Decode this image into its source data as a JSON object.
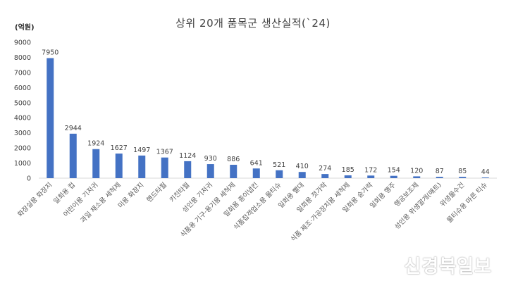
{
  "chart_data": {
    "type": "bar",
    "title": "상위 20개 품목군 생산실적(`24)",
    "ylabel": "(억원)",
    "xlabel": "",
    "ylim": [
      0,
      9000
    ],
    "yticks": [
      0,
      1000,
      2000,
      3000,
      4000,
      5000,
      6000,
      7000,
      8000,
      9000
    ],
    "grid": false,
    "legend": "none",
    "bar_color": "#4472C4",
    "categories": [
      "화장실용 화장지",
      "일회용 컵",
      "어린이용 기저귀",
      "과일 채소용 세척제",
      "미용 화장지",
      "핸드타월",
      "키친타월",
      "성인용 기저귀",
      "식품용 기구·용기용 세척제",
      "일회용 종이냅킨",
      "식품접객업소용 물티슈",
      "일회용 빨대",
      "일회용 젓가락",
      "식품 제조·가공장치용 세척제",
      "일회용 숟가락",
      "일회용 행주",
      "헹굼보조제",
      "성인용 위생깔개(매트)",
      "위생물수건",
      "물티슈용 마른 티슈"
    ],
    "values": [
      7950,
      2944,
      1924,
      1627,
      1497,
      1367,
      1124,
      930,
      886,
      641,
      521,
      410,
      274,
      185,
      172,
      154,
      120,
      87,
      85,
      44
    ]
  },
  "watermark": "신경북일보"
}
